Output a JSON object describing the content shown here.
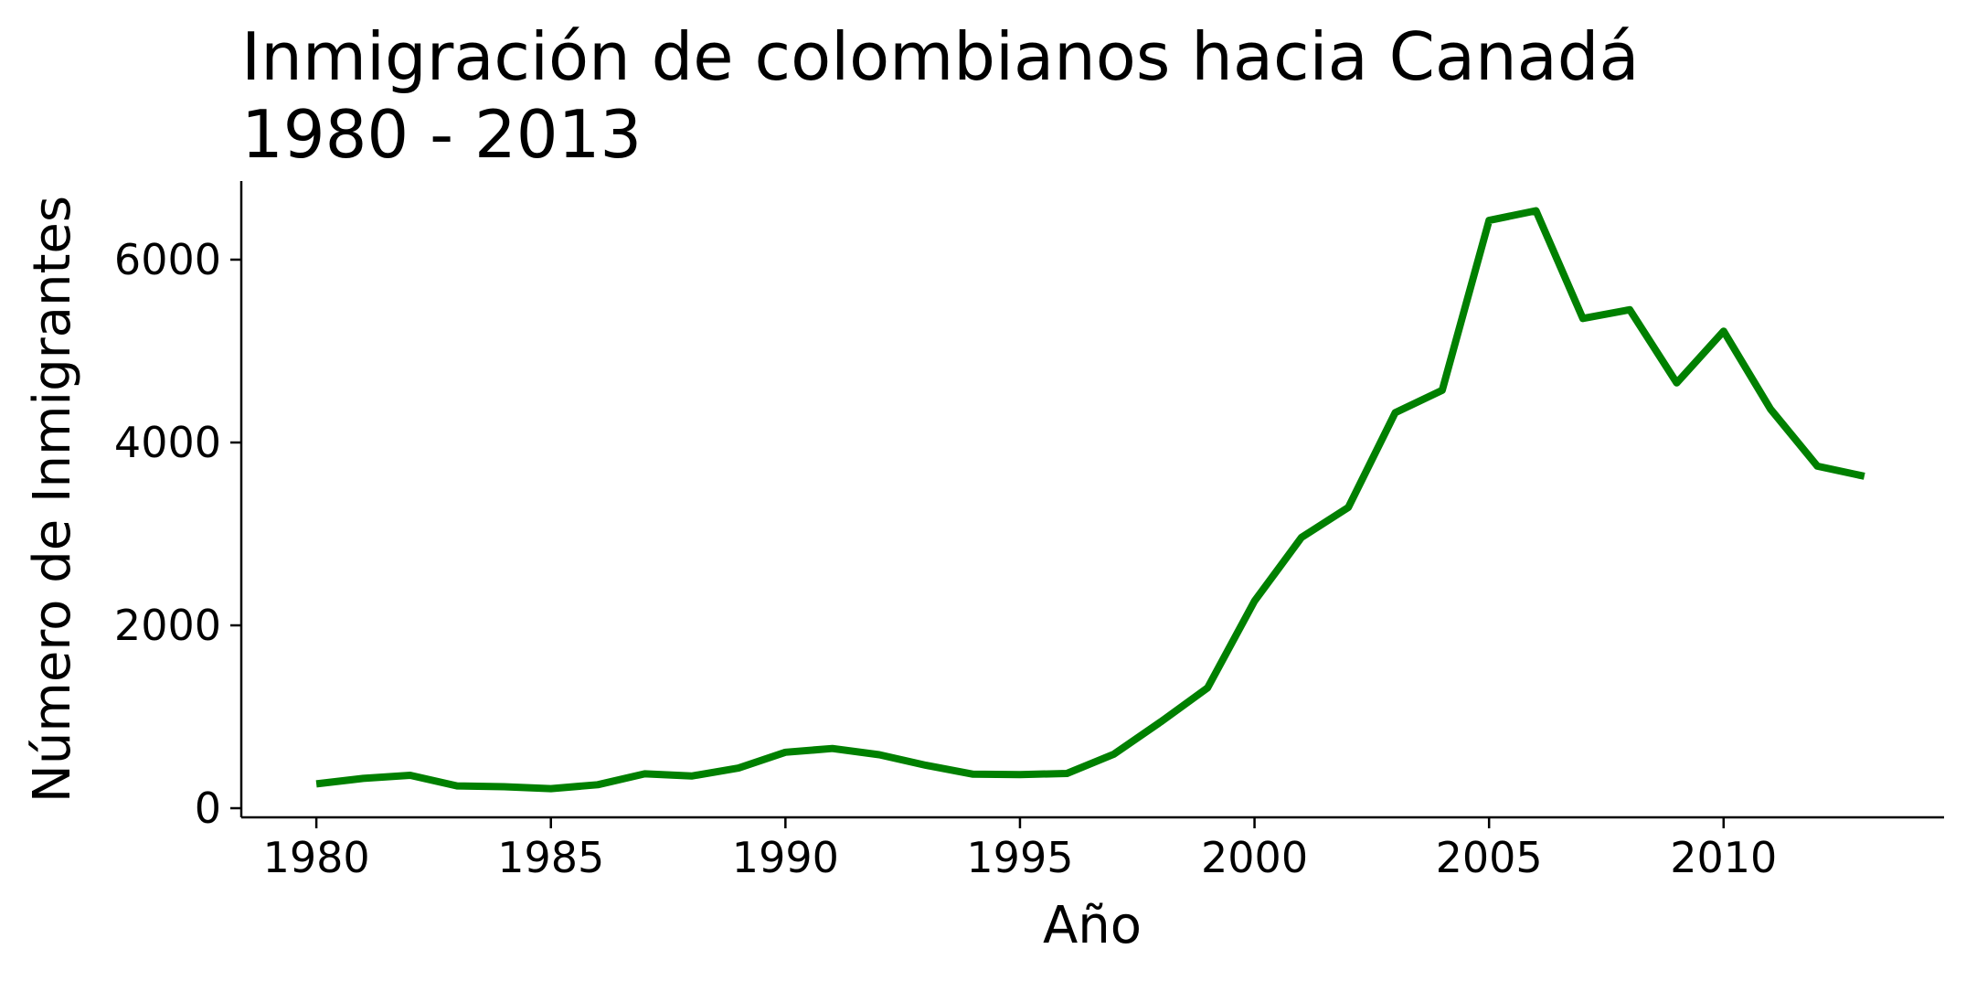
{
  "chart_data": {
    "type": "line",
    "title_lines": [
      "Inmigración de colombianos hacia Canadá",
      "1980 - 2013"
    ],
    "xlabel": "Año",
    "ylabel": "Número de Inmigrantes",
    "xlim": [
      1978.4,
      2014.7
    ],
    "ylim": [
      -100,
      6860
    ],
    "x_ticks": [
      1980,
      1985,
      1990,
      1995,
      2000,
      2005,
      2010
    ],
    "y_ticks": [
      0,
      2000,
      4000,
      6000
    ],
    "grid": false,
    "line_color": "#008000",
    "series": [
      {
        "x": [
          1980,
          1981,
          1982,
          1983,
          1984,
          1985,
          1986,
          1987,
          1988,
          1989,
          1990,
          1991,
          1992,
          1993,
          1994,
          1995,
          1996,
          1997,
          1998,
          1999,
          2000,
          2001,
          2002,
          2003,
          2004,
          2005,
          2006,
          2007,
          2008,
          2009,
          2010,
          2011,
          2012,
          2013
        ],
        "values": [
          266,
          326,
          360,
          244,
          235,
          214,
          257,
          376,
          352,
          439,
          612,
          653,
          585,
          469,
          372,
          368,
          380,
          591,
          944,
          1316,
          2266,
          2961,
          3290,
          4326,
          4571,
          6429,
          6535,
          5357,
          5452,
          4652,
          5218,
          4366,
          3741,
          3631
        ]
      }
    ]
  }
}
